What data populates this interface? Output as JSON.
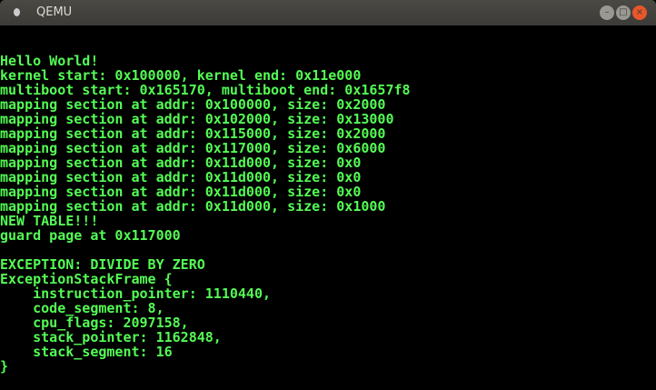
{
  "window": {
    "title": "QEMU",
    "buttons": {
      "minimize": "–",
      "maximize": "□",
      "close": "×"
    }
  },
  "colors": {
    "text": "#54fc54",
    "background": "#000000",
    "close_button": "#e7572a"
  },
  "console_lines": [
    "Hello World!",
    "kernel start: 0x100000, kernel end: 0x11e000",
    "multiboot start: 0x165170, multiboot end: 0x1657f8",
    "mapping section at addr: 0x100000, size: 0x2000",
    "mapping section at addr: 0x102000, size: 0x13000",
    "mapping section at addr: 0x115000, size: 0x2000",
    "mapping section at addr: 0x117000, size: 0x6000",
    "mapping section at addr: 0x11d000, size: 0x0",
    "mapping section at addr: 0x11d000, size: 0x0",
    "mapping section at addr: 0x11d000, size: 0x0",
    "mapping section at addr: 0x11d000, size: 0x1000",
    "NEW TABLE!!!",
    "guard page at 0x117000",
    "",
    "EXCEPTION: DIVIDE BY ZERO",
    "ExceptionStackFrame {",
    "    instruction_pointer: 1110440,",
    "    code_segment: 8,",
    "    cpu_flags: 2097158,",
    "    stack_pointer: 1162848,",
    "    stack_segment: 16",
    "}"
  ]
}
